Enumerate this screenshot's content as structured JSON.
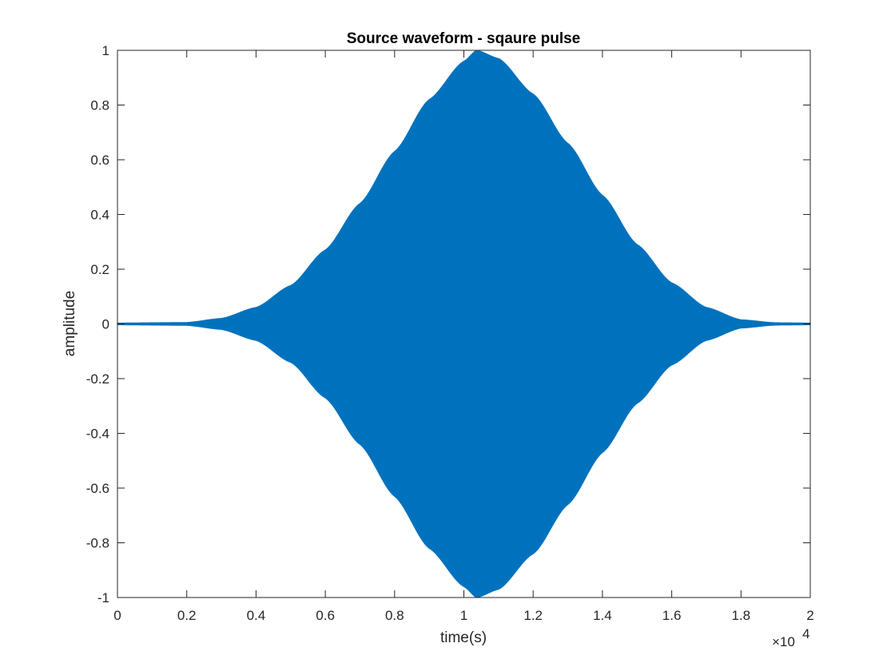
{
  "chart_data": {
    "type": "area",
    "title": "Source waveform - sqaure pulse",
    "xlabel": "time(s)",
    "ylabel": "amplitude",
    "x_exponent_label": "×10⁴",
    "x_exponent_base": "×10",
    "x_exponent_power": "4",
    "xlim": [
      0,
      2
    ],
    "ylim": [
      -1,
      1
    ],
    "x_ticks": [
      0,
      0.2,
      0.4,
      0.6,
      0.8,
      1,
      1.2,
      1.4,
      1.6,
      1.8,
      2
    ],
    "x_tick_labels": [
      "0",
      "0.2",
      "0.4",
      "0.6",
      "0.8",
      "1",
      "1.2",
      "1.4",
      "1.6",
      "1.8",
      "2"
    ],
    "y_ticks": [
      -1,
      -0.8,
      -0.6,
      -0.4,
      -0.2,
      0,
      0.2,
      0.4,
      0.6,
      0.8,
      1
    ],
    "y_tick_labels": [
      "-1",
      "-0.8",
      "-0.6",
      "-0.4",
      "-0.2",
      "0",
      "0.2",
      "0.4",
      "0.6",
      "0.8",
      "1"
    ],
    "grid": false,
    "series": [
      {
        "color": "#0072BD",
        "envelope": {
          "x": [
            0,
            0.2,
            0.3,
            0.4,
            0.5,
            0.6,
            0.7,
            0.8,
            0.9,
            1.0,
            1.037,
            1.1,
            1.2,
            1.3,
            1.4,
            1.5,
            1.6,
            1.7,
            1.8,
            1.9,
            2.0
          ],
          "upper": [
            0.003,
            0.005,
            0.02,
            0.06,
            0.14,
            0.27,
            0.44,
            0.63,
            0.82,
            0.96,
            1.0,
            0.97,
            0.84,
            0.66,
            0.47,
            0.29,
            0.15,
            0.06,
            0.015,
            0.004,
            0.003
          ],
          "lower": [
            -0.003,
            -0.005,
            -0.02,
            -0.06,
            -0.14,
            -0.27,
            -0.44,
            -0.63,
            -0.82,
            -0.96,
            -1.0,
            -0.97,
            -0.84,
            -0.66,
            -0.47,
            -0.29,
            -0.15,
            -0.06,
            -0.015,
            -0.004,
            -0.003
          ]
        }
      }
    ]
  }
}
